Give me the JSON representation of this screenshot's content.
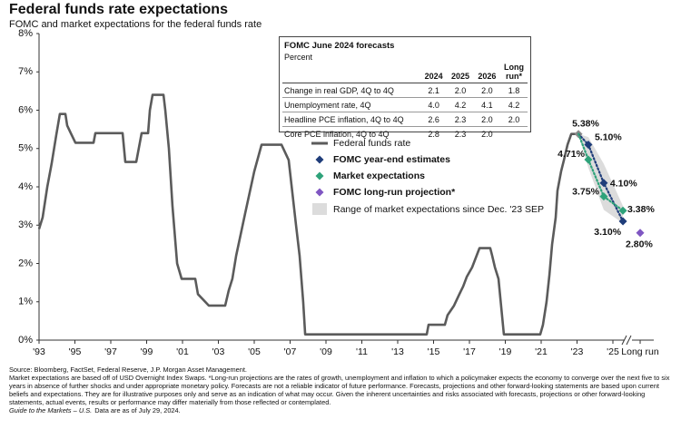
{
  "chart_data": {
    "type": "line",
    "title": "Federal funds rate expectations",
    "subtitle": "FOMC and market expectations for the federal funds rate",
    "xlim": [
      1993,
      2027
    ],
    "ylim": [
      0,
      8
    ],
    "yticks": [
      {
        "value": 0,
        "label": "0%"
      },
      {
        "value": 1,
        "label": "1%"
      },
      {
        "value": 2,
        "label": "2%"
      },
      {
        "value": 3,
        "label": "3%"
      },
      {
        "value": 4,
        "label": "4%"
      },
      {
        "value": 5,
        "label": "5%"
      },
      {
        "value": 6,
        "label": "6%"
      },
      {
        "value": 7,
        "label": "7%"
      },
      {
        "value": 8,
        "label": "8%"
      }
    ],
    "xticks": [
      {
        "value": 1993,
        "label": "'93"
      },
      {
        "value": 1995,
        "label": "'95"
      },
      {
        "value": 1997,
        "label": "'97"
      },
      {
        "value": 1999,
        "label": "'99"
      },
      {
        "value": 2001,
        "label": "'01"
      },
      {
        "value": 2003,
        "label": "'03"
      },
      {
        "value": 2005,
        "label": "'05"
      },
      {
        "value": 2007,
        "label": "'07"
      },
      {
        "value": 2009,
        "label": "'09"
      },
      {
        "value": 2011,
        "label": "'11"
      },
      {
        "value": 2013,
        "label": "'13"
      },
      {
        "value": 2015,
        "label": "'15"
      },
      {
        "value": 2017,
        "label": "'17"
      },
      {
        "value": 2019,
        "label": "'19"
      },
      {
        "value": 2021,
        "label": "'21"
      },
      {
        "value": 2023,
        "label": "'23"
      },
      {
        "value": 2025,
        "label": "'25"
      },
      {
        "value": 2026.52,
        "label": "Long run"
      }
    ],
    "series": [
      {
        "name": "Federal funds rate",
        "color": "#5b5b5b",
        "end_label": "5.38%",
        "x": [
          1993,
          1993.2,
          1993.46,
          1993.7,
          1993.96,
          1994.16,
          1994.47,
          1994.57,
          1994.77,
          1995.03,
          1996.04,
          1996.14,
          1997.66,
          1997.81,
          1998.42,
          1998.52,
          1998.72,
          1999.08,
          1999.18,
          1999.33,
          1999.94,
          2000.04,
          2000.24,
          2000.44,
          2000.7,
          2000.95,
          2001.71,
          2001.86,
          2002.47,
          2003.38,
          2003.58,
          2003.78,
          2003.99,
          2004.49,
          2005,
          2005.41,
          2006.52,
          2006.92,
          2007.33,
          2007.53,
          2007.73,
          2007.84,
          2014.62,
          2014.72,
          2015.63,
          2015.78,
          2016.14,
          2016.44,
          2016.65,
          2016.85,
          2017.15,
          2017.56,
          2018.16,
          2018.27,
          2018.42,
          2018.62,
          2018.92,
          2020.95,
          2021.1,
          2021.3,
          2021.46,
          2021.61,
          2021.81,
          2021.91,
          2022.11,
          2022.27,
          2022.47,
          2022.68,
          2023.08
        ],
        "values": [
          2.9,
          3.2,
          4.0,
          4.6,
          5.35,
          5.9,
          5.9,
          5.6,
          5.4,
          5.15,
          5.15,
          5.4,
          5.4,
          4.65,
          4.65,
          4.9,
          5.4,
          5.4,
          6.0,
          6.4,
          6.4,
          6.0,
          5.0,
          3.5,
          2.0,
          1.6,
          1.6,
          1.2,
          0.9,
          0.9,
          1.3,
          1.6,
          2.2,
          3.3,
          4.4,
          5.1,
          5.1,
          4.7,
          3.0,
          2.2,
          1.0,
          0.15,
          0.15,
          0.4,
          0.4,
          0.65,
          0.9,
          1.2,
          1.4,
          1.65,
          1.9,
          2.4,
          2.4,
          2.2,
          1.9,
          1.6,
          0.15,
          0.15,
          0.4,
          1.0,
          1.7,
          2.5,
          3.2,
          3.9,
          4.4,
          4.7,
          5.1,
          5.38,
          5.38
        ]
      },
      {
        "name": "FOMC year-end estimates",
        "color": "#1f3d7a",
        "x": [
          2023.63,
          2024.49,
          2025.56
        ],
        "values": [
          5.1,
          4.1,
          3.1
        ],
        "value_labels": [
          "5.10%",
          "4.10%",
          "3.10%"
        ]
      },
      {
        "name": "Market expectations",
        "color": "#2ea27a",
        "x": [
          2023.63,
          2024.49,
          2025.56
        ],
        "values": [
          4.71,
          3.75,
          3.38
        ],
        "value_labels": [
          "4.71%",
          "3.75%",
          "3.38%"
        ]
      },
      {
        "name": "FOMC long-run projection*",
        "color": "#7f56c2",
        "x": [
          2026.52
        ],
        "values": [
          2.8
        ],
        "value_labels": [
          "2.80%"
        ]
      },
      {
        "name": "Range of market expectations since Dec. '23 SEP",
        "color": "#dcdcdc",
        "x": [
          2023.08,
          2023.63,
          2024.49,
          2025.56
        ],
        "upper": [
          5.38,
          5.3,
          4.6,
          3.5
        ],
        "lower": [
          5.38,
          4.5,
          3.4,
          3.05
        ]
      }
    ],
    "table": {
      "title": "FOMC June 2024 forecasts",
      "subtitle": "Percent",
      "columns": [
        "2024",
        "2025",
        "2026",
        "Long run*"
      ],
      "rows": [
        [
          "Change in real GDP, 4Q to 4Q",
          "2.1",
          "2.0",
          "2.0",
          "1.8"
        ],
        [
          "Unemployment rate, 4Q",
          "4.0",
          "4.2",
          "4.1",
          "4.2"
        ],
        [
          "Headline PCE inflation, 4Q to 4Q",
          "2.6",
          "2.3",
          "2.0",
          "2.0"
        ],
        [
          "Core PCE inflation, 4Q to 4Q",
          "2.8",
          "2.3",
          "2.0",
          ""
        ]
      ]
    },
    "notes": [
      "Source: Bloomberg, FactSet, Federal Reserve, J.P. Morgan Asset Management.",
      "Market expectations are based off of USD Overnight Index Swaps. *Long-run projections are the rates of growth, unemployment and inflation to which a policymaker expects the economy to converge over the next five to six years in absence of further shocks and under appropriate monetary policy. Forecasts are not a reliable indicator of future performance. Forecasts, projections and other forward-looking statements are based upon current beliefs and expectations. They are for illustrative purposes only and serve as an indication of what may occur. Given the inherent uncertainties and risks associated with forecasts, projections or other forward-looking statements, actual events, results or performance may differ materially from those reflected or contemplated."
    ],
    "guide": {
      "name": "Guide to the Markets – U.S.",
      "text": "Data are as of July 29, 2024."
    }
  }
}
